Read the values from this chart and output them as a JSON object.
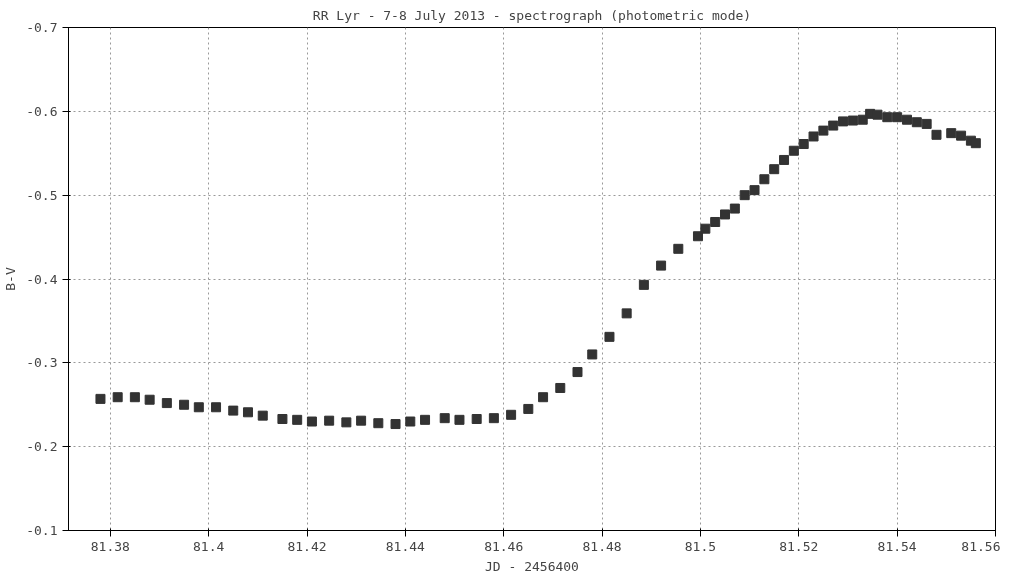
{
  "chart_data": {
    "type": "scatter",
    "title": "RR Lyr - 7-8 July 2013 - spectrograph (photometric mode)",
    "xlabel": "JD - 2456400",
    "ylabel": "B-V",
    "xlim": [
      81.3715,
      81.56
    ],
    "xticks": [
      81.38,
      81.4,
      81.42,
      81.44,
      81.46,
      81.48,
      81.5,
      81.52,
      81.54,
      81.56
    ],
    "ylim": [
      -0.1,
      -0.7
    ],
    "yticks": [
      -0.7,
      -0.6,
      -0.5,
      -0.4,
      -0.3,
      -0.2,
      -0.1
    ],
    "grid": true,
    "marker": "square",
    "series": [
      {
        "color": "#333333",
        "x": [
          81.378,
          81.3815,
          81.385,
          81.388,
          81.3915,
          81.395,
          81.398,
          81.4015,
          81.405,
          81.408,
          81.411,
          81.415,
          81.418,
          81.421,
          81.4245,
          81.428,
          81.431,
          81.4345,
          81.438,
          81.441,
          81.444,
          81.448,
          81.451,
          81.4545,
          81.458,
          81.4615,
          81.465,
          81.468,
          81.4715,
          81.475,
          81.478,
          81.4815,
          81.485,
          81.4885,
          81.492,
          81.4955,
          81.4995,
          81.501,
          81.503,
          81.505,
          81.507,
          81.509,
          81.511,
          81.513,
          81.515,
          81.517,
          81.519,
          81.521,
          81.523,
          81.525,
          81.527,
          81.529,
          81.531,
          81.533,
          81.5345,
          81.536,
          81.538,
          81.54,
          81.542,
          81.544,
          81.546,
          81.548,
          81.551,
          81.553,
          81.555,
          81.556
        ],
        "values": [
          -0.257,
          -0.259,
          -0.259,
          -0.256,
          -0.252,
          -0.25,
          -0.247,
          -0.247,
          -0.243,
          -0.241,
          -0.237,
          -0.233,
          -0.232,
          -0.23,
          -0.231,
          -0.229,
          -0.231,
          -0.228,
          -0.227,
          -0.23,
          -0.232,
          -0.234,
          -0.232,
          -0.233,
          -0.234,
          -0.238,
          -0.245,
          -0.259,
          -0.27,
          -0.289,
          -0.31,
          -0.331,
          -0.359,
          -0.393,
          -0.416,
          -0.436,
          -0.451,
          -0.46,
          -0.468,
          -0.477,
          -0.484,
          -0.5,
          -0.506,
          -0.519,
          -0.531,
          -0.542,
          -0.553,
          -0.561,
          -0.57,
          -0.577,
          -0.583,
          -0.588,
          -0.589,
          -0.59,
          -0.597,
          -0.596,
          -0.593,
          -0.593,
          -0.59,
          -0.587,
          -0.585,
          -0.572,
          -0.574,
          -0.571,
          -0.565,
          -0.562
        ]
      }
    ]
  }
}
